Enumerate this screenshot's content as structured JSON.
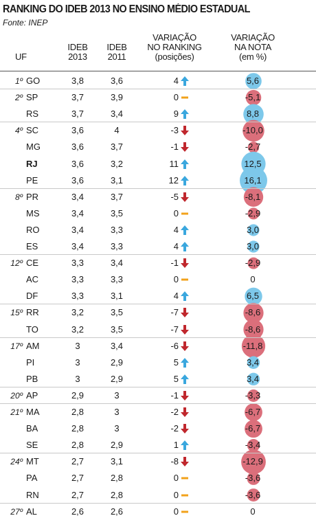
{
  "title": "RANKING DO IDEB 2013 NO ENSINO MÉDIO ESTADUAL",
  "source": "Fonte: INEP",
  "headers": {
    "uf": "UF",
    "ideb2013": [
      "IDEB",
      "2013"
    ],
    "ideb2011": [
      "IDEB",
      "2011"
    ],
    "ranking": [
      "VARIAÇÃO",
      "NO RANKING",
      "(posições)"
    ],
    "nota": [
      "VARIAÇÃO",
      "NA NOTA",
      "(em %)"
    ]
  },
  "colors": {
    "up": "#3aa7de",
    "down": "#c0272d",
    "zero": "#f2a21b",
    "bubble_pos": "#7dc8ea",
    "bubble_neg": "#db6f7b"
  },
  "chart_data": {
    "type": "table",
    "columns": [
      "pos",
      "uf",
      "ideb2013",
      "ideb2011",
      "var_ranking",
      "var_nota"
    ],
    "rows": [
      {
        "pos": "1º",
        "uf": "GO",
        "ideb2013": "3,8",
        "ideb2011": "3,6",
        "rank_change": "4",
        "rank_dir": "up",
        "nota": "5,6",
        "nota_value": 5.6,
        "bold": false
      },
      {
        "pos": "2º",
        "uf": "SP",
        "ideb2013": "3,7",
        "ideb2011": "3,9",
        "rank_change": "0",
        "rank_dir": "zero",
        "nota": "-5,1",
        "nota_value": -5.1,
        "bold": false
      },
      {
        "pos": "",
        "uf": "RS",
        "ideb2013": "3,7",
        "ideb2011": "3,4",
        "rank_change": "9",
        "rank_dir": "up",
        "nota": "8,8",
        "nota_value": 8.8,
        "bold": false
      },
      {
        "pos": "4º",
        "uf": "SC",
        "ideb2013": "3,6",
        "ideb2011": "4",
        "rank_change": "-3",
        "rank_dir": "down",
        "nota": "-10,0",
        "nota_value": -10.0,
        "bold": false
      },
      {
        "pos": "",
        "uf": "MG",
        "ideb2013": "3,6",
        "ideb2011": "3,7",
        "rank_change": "-1",
        "rank_dir": "down",
        "nota": "-2,7",
        "nota_value": -2.7,
        "bold": false
      },
      {
        "pos": "",
        "uf": "RJ",
        "ideb2013": "3,6",
        "ideb2011": "3,2",
        "rank_change": "11",
        "rank_dir": "up",
        "nota": "12,5",
        "nota_value": 12.5,
        "bold": true
      },
      {
        "pos": "",
        "uf": "PE",
        "ideb2013": "3,6",
        "ideb2011": "3,1",
        "rank_change": "12",
        "rank_dir": "up",
        "nota": "16,1",
        "nota_value": 16.1,
        "bold": false
      },
      {
        "pos": "8º",
        "uf": "PR",
        "ideb2013": "3,4",
        "ideb2011": "3,7",
        "rank_change": "-5",
        "rank_dir": "down",
        "nota": "-8,1",
        "nota_value": -8.1,
        "bold": false
      },
      {
        "pos": "",
        "uf": "MS",
        "ideb2013": "3,4",
        "ideb2011": "3,5",
        "rank_change": "0",
        "rank_dir": "zero",
        "nota": "-2,9",
        "nota_value": -2.9,
        "bold": false
      },
      {
        "pos": "",
        "uf": "RO",
        "ideb2013": "3,4",
        "ideb2011": "3,3",
        "rank_change": "4",
        "rank_dir": "up",
        "nota": "3,0",
        "nota_value": 3.0,
        "bold": false
      },
      {
        "pos": "",
        "uf": "ES",
        "ideb2013": "3,4",
        "ideb2011": "3,3",
        "rank_change": "4",
        "rank_dir": "up",
        "nota": "3,0",
        "nota_value": 3.0,
        "bold": false
      },
      {
        "pos": "12º",
        "uf": "CE",
        "ideb2013": "3,3",
        "ideb2011": "3,4",
        "rank_change": "-1",
        "rank_dir": "down",
        "nota": "-2,9",
        "nota_value": -2.9,
        "bold": false
      },
      {
        "pos": "",
        "uf": "AC",
        "ideb2013": "3,3",
        "ideb2011": "3,3",
        "rank_change": "0",
        "rank_dir": "zero",
        "nota": "0",
        "nota_value": 0,
        "bold": false
      },
      {
        "pos": "",
        "uf": "DF",
        "ideb2013": "3,3",
        "ideb2011": "3,1",
        "rank_change": "4",
        "rank_dir": "up",
        "nota": "6,5",
        "nota_value": 6.5,
        "bold": false
      },
      {
        "pos": "15º",
        "uf": "RR",
        "ideb2013": "3,2",
        "ideb2011": "3,5",
        "rank_change": "-7",
        "rank_dir": "down",
        "nota": "-8,6",
        "nota_value": -8.6,
        "bold": false
      },
      {
        "pos": "",
        "uf": "TO",
        "ideb2013": "3,2",
        "ideb2011": "3,5",
        "rank_change": "-7",
        "rank_dir": "down",
        "nota": "-8,6",
        "nota_value": -8.6,
        "bold": false
      },
      {
        "pos": "17º",
        "uf": "AM",
        "ideb2013": "3",
        "ideb2011": "3,4",
        "rank_change": "-6",
        "rank_dir": "down",
        "nota": "-11,8",
        "nota_value": -11.8,
        "bold": false
      },
      {
        "pos": "",
        "uf": "PI",
        "ideb2013": "3",
        "ideb2011": "2,9",
        "rank_change": "5",
        "rank_dir": "up",
        "nota": "3,4",
        "nota_value": 3.4,
        "bold": false
      },
      {
        "pos": "",
        "uf": "PB",
        "ideb2013": "3",
        "ideb2011": "2,9",
        "rank_change": "5",
        "rank_dir": "up",
        "nota": "3,4",
        "nota_value": 3.4,
        "bold": false
      },
      {
        "pos": "20º",
        "uf": "AP",
        "ideb2013": "2,9",
        "ideb2011": "3",
        "rank_change": "-1",
        "rank_dir": "down",
        "nota": "-3,3",
        "nota_value": -3.3,
        "bold": false
      },
      {
        "pos": "21º",
        "uf": "MA",
        "ideb2013": "2,8",
        "ideb2011": "3",
        "rank_change": "-2",
        "rank_dir": "down",
        "nota": "-6,7",
        "nota_value": -6.7,
        "bold": false
      },
      {
        "pos": "",
        "uf": "BA",
        "ideb2013": "2,8",
        "ideb2011": "3",
        "rank_change": "-2",
        "rank_dir": "down",
        "nota": "-6,7",
        "nota_value": -6.7,
        "bold": false
      },
      {
        "pos": "",
        "uf": "SE",
        "ideb2013": "2,8",
        "ideb2011": "2,9",
        "rank_change": "1",
        "rank_dir": "up",
        "nota": "-3,4",
        "nota_value": -3.4,
        "bold": false
      },
      {
        "pos": "24º",
        "uf": "MT",
        "ideb2013": "2,7",
        "ideb2011": "3,1",
        "rank_change": "-8",
        "rank_dir": "down",
        "nota": "-12,9",
        "nota_value": -12.9,
        "bold": false
      },
      {
        "pos": "",
        "uf": "PA",
        "ideb2013": "2,7",
        "ideb2011": "2,8",
        "rank_change": "0",
        "rank_dir": "zero",
        "nota": "-3,6",
        "nota_value": -3.6,
        "bold": false
      },
      {
        "pos": "",
        "uf": "RN",
        "ideb2013": "2,7",
        "ideb2011": "2,8",
        "rank_change": "0",
        "rank_dir": "zero",
        "nota": "-3,6",
        "nota_value": -3.6,
        "bold": false
      },
      {
        "pos": "27º",
        "uf": "AL",
        "ideb2013": "2,6",
        "ideb2011": "2,6",
        "rank_change": "0",
        "rank_dir": "zero",
        "nota": "0",
        "nota_value": 0,
        "bold": false
      }
    ]
  }
}
